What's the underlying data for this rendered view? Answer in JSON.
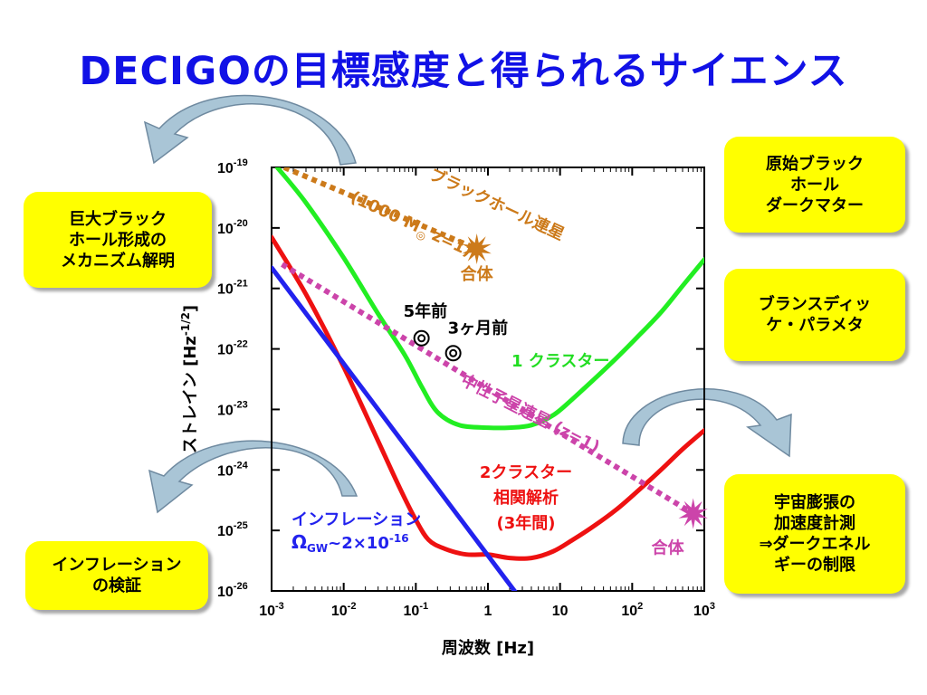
{
  "slide": {
    "title": "DECIGOの目標感度と得られるサイエンス"
  },
  "callouts": {
    "black_hole_formation": [
      "巨大ブラック",
      "ホール形成の",
      "メカニズム解明"
    ],
    "inflation_test": [
      "インフレーション",
      "の検証"
    ],
    "primordial_bh": [
      "原始ブラック",
      "ホール",
      "ダークマター"
    ],
    "brans_dicke": [
      "ブランスディッ",
      "ケ・パラメタ"
    ],
    "expansion": [
      "宇宙膨張の",
      "加速度計測",
      "⇒ダークエネル",
      "ギーの制限"
    ]
  },
  "colors": {
    "title": "#1111e6",
    "callout_bg": "#ffff00",
    "one_cluster": "#22ee22",
    "two_cluster": "#ee1111",
    "inflation": "#2222ee",
    "bh_binary": "#cc7a1a",
    "ns_binary": "#cc44aa",
    "arrow_fill": "#a9c5d6",
    "arrow_stroke": "#6f8aa0"
  },
  "chart_data": {
    "type": "line",
    "xlabel": "周波数 [Hz]",
    "ylabel": "ストレイン [Hz-1/2]",
    "x_scale": "log",
    "y_scale": "log",
    "xlim": [
      0.001,
      1000
    ],
    "ylim": [
      1e-26,
      1e-19
    ],
    "x_ticks": [
      {
        "v": 0.001,
        "b": "10",
        "e": "-3"
      },
      {
        "v": 0.01,
        "b": "10",
        "e": "-2"
      },
      {
        "v": 0.1,
        "b": "10",
        "e": "-1"
      },
      {
        "v": 1,
        "b": "1",
        "e": ""
      },
      {
        "v": 10,
        "b": "10",
        "e": ""
      },
      {
        "v": 100,
        "b": "10",
        "e": "2"
      },
      {
        "v": 1000,
        "b": "10",
        "e": "3"
      }
    ],
    "y_ticks": [
      {
        "v": 1e-19,
        "b": "10",
        "e": "-19"
      },
      {
        "v": 1e-20,
        "b": "10",
        "e": "-20"
      },
      {
        "v": 1e-21,
        "b": "10",
        "e": "-21"
      },
      {
        "v": 1e-22,
        "b": "10",
        "e": "-22"
      },
      {
        "v": 1e-23,
        "b": "10",
        "e": "-23"
      },
      {
        "v": 1e-24,
        "b": "10",
        "e": "-24"
      },
      {
        "v": 1e-25,
        "b": "10",
        "e": "-25"
      },
      {
        "v": 1e-26,
        "b": "10",
        "e": "-26"
      }
    ],
    "series": [
      {
        "key": "one_cluster",
        "style": "solid",
        "x": [
          0.0012,
          0.003,
          0.01,
          0.03,
          0.07,
          0.12,
          0.2,
          0.4,
          1,
          2,
          4,
          8,
          15,
          30,
          60,
          120,
          250,
          500,
          1000
        ],
        "y": [
          1e-19,
          2.6e-20,
          3.2e-21,
          3.8e-22,
          8e-23,
          2.4e-23,
          9e-24,
          5.5e-24,
          5e-24,
          5e-24,
          5.5e-24,
          8e-24,
          1.5e-23,
          3.2e-23,
          7e-23,
          1.6e-22,
          4e-22,
          1.1e-21,
          3e-21
        ]
      },
      {
        "key": "two_cluster",
        "style": "solid",
        "x": [
          0.001,
          0.003,
          0.01,
          0.03,
          0.06,
          0.1,
          0.15,
          0.25,
          0.5,
          1,
          2,
          4,
          8,
          15,
          30,
          60,
          120,
          250,
          500,
          1000
        ],
        "y": [
          7e-21,
          8e-22,
          5e-23,
          3e-24,
          5e-25,
          1.5e-25,
          7e-26,
          5e-26,
          4e-26,
          4e-26,
          3.5e-26,
          3.5e-26,
          4.5e-26,
          7e-26,
          1.2e-25,
          2.2e-25,
          4.5e-25,
          1e-24,
          2.2e-24,
          4.5e-24
        ]
      },
      {
        "key": "inflation",
        "style": "solid",
        "x": [
          0.001,
          2.5
        ],
        "y": [
          2.2e-21,
          9e-27
        ]
      },
      {
        "key": "bh_binary",
        "style": "dotted",
        "x": [
          0.0015,
          0.7
        ],
        "y": [
          1e-19,
          4.5e-21
        ]
      },
      {
        "key": "ns_binary",
        "style": "dotted",
        "x": [
          0.0014,
          700
        ],
        "y": [
          2.5e-21,
          1.9e-25
        ]
      }
    ],
    "markers": [
      {
        "key": "bh_merger",
        "x": 0.7,
        "y": 4.5e-21,
        "label": "合体"
      },
      {
        "key": "ns_merger",
        "x": 700,
        "y": 1.9e-25,
        "label": "合体"
      },
      {
        "key": "ns_5yr",
        "x": 0.12,
        "y": 1.5e-22,
        "label": "5年前"
      },
      {
        "key": "ns_3mo",
        "x": 0.33,
        "y": 8.5e-23,
        "label": "3ヶ月前"
      }
    ],
    "annotations": {
      "bh_line1": "ブラックホール連星",
      "bh_line2": "(1000 M",
      "bh_sun": "◎",
      "bh_line3": " z=1)",
      "one_cluster": "1 クラスター",
      "ns": "中性子星連星 (z=1)",
      "two_cluster_1": "2クラスター",
      "two_cluster_2": "相関解析",
      "two_cluster_3": "(3年間)",
      "inflation_1": "インフレーション",
      "omega": "Ω",
      "omega_sub": "GW",
      "omega_tail": "~2×10",
      "omega_exp": "-16"
    }
  }
}
